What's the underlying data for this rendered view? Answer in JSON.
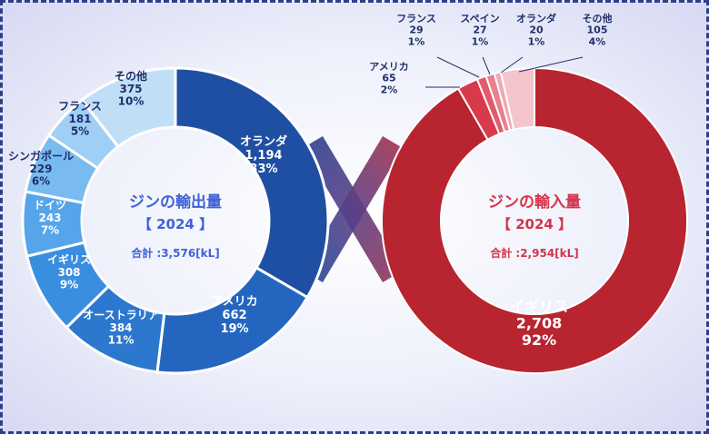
{
  "chart_data": [
    {
      "type": "pie",
      "title": "ジンの輸出量",
      "subtitle": "【 2024 】",
      "total_label": "合計 :3,576[kL]",
      "categories": [
        "オランダ",
        "アメリカ",
        "オーストラリア",
        "イギリス",
        "ドイツ",
        "シンガポール",
        "フランス",
        "その他"
      ],
      "values": [
        1194,
        662,
        384,
        308,
        243,
        229,
        181,
        375
      ],
      "value_labels": [
        "1,194",
        "662",
        "384",
        "308",
        "243",
        "229",
        "181",
        "375"
      ],
      "percent_labels": [
        "33%",
        "19%",
        "11%",
        "9%",
        "7%",
        "6%",
        "5%",
        "10%"
      ],
      "colors": [
        "#1f4fa3",
        "#2466bf",
        "#2d78cf",
        "#3a8ee0",
        "#56a5ea",
        "#79bbf0",
        "#9fcff4",
        "#c0dff7"
      ]
    },
    {
      "type": "pie",
      "title": "ジンの輸入量",
      "subtitle": "【 2024 】",
      "total_label": "合計 :2,954[kL]",
      "categories": [
        "イギリス",
        "アメリカ",
        "フランス",
        "スペイン",
        "オランダ",
        "その他"
      ],
      "values": [
        2708,
        65,
        29,
        27,
        20,
        105
      ],
      "value_labels": [
        "2,708",
        "65",
        "29",
        "27",
        "20",
        "105"
      ],
      "percent_labels": [
        "92%",
        "2%",
        "1%",
        "1%",
        "1%",
        "4%"
      ],
      "colors": [
        "#b8242f",
        "#d83a4c",
        "#e05b6b",
        "#e8808e",
        "#f0a8b3",
        "#f4c4cc"
      ]
    }
  ]
}
